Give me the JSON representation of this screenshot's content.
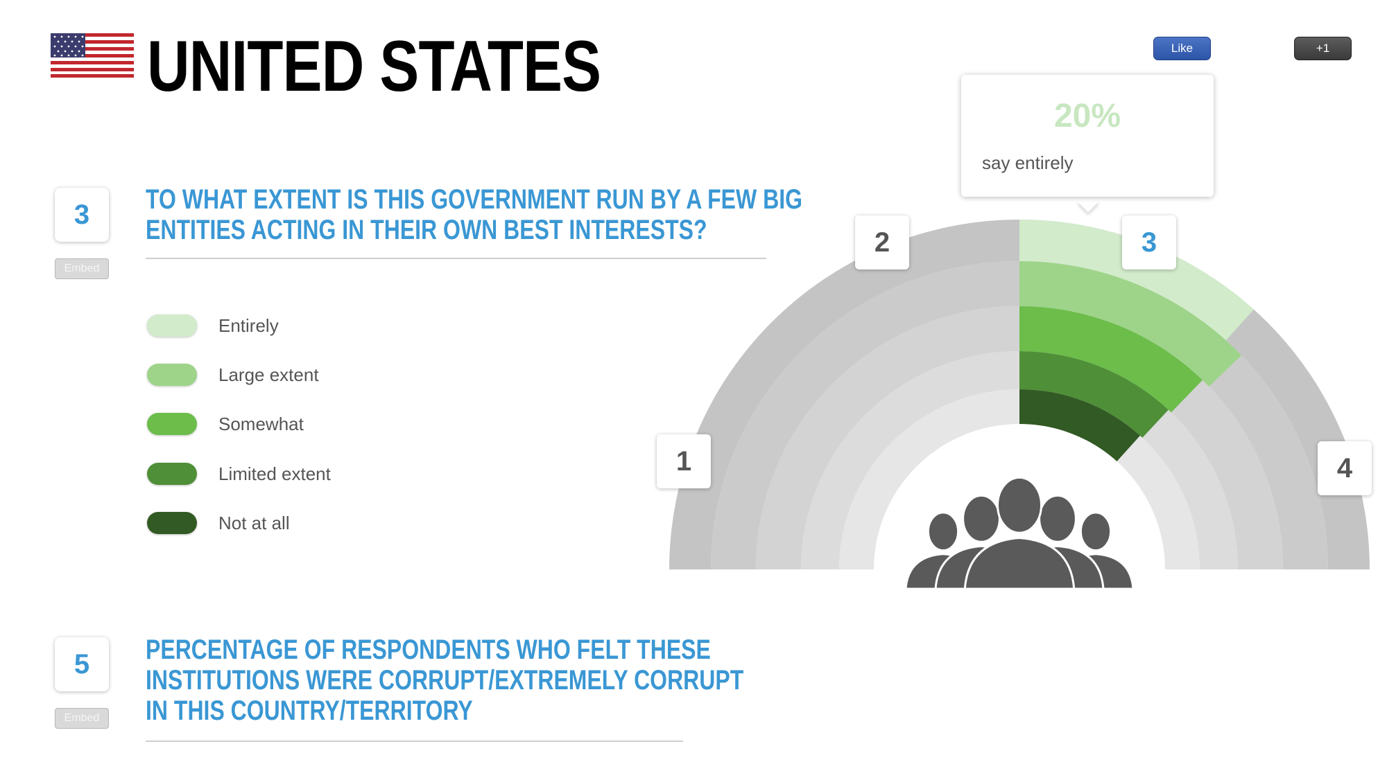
{
  "header": {
    "country": "UNITED STATES",
    "flag_icon": "us-flag-icon"
  },
  "social": {
    "like_label": "Like",
    "plusone_label": "+1"
  },
  "question_3": {
    "number": "3",
    "embed_label": "Embed",
    "lines": [
      "TO WHAT EXTENT IS THIS GOVERNMENT RUN BY A FEW BIG",
      "ENTITIES ACTING IN THEIR OWN BEST INTERESTS?"
    ]
  },
  "legend": [
    {
      "label": "Entirely",
      "color": "#d2ebcb"
    },
    {
      "label": "Large extent",
      "color": "#9ed489"
    },
    {
      "label": "Somewhat",
      "color": "#6cbd4a"
    },
    {
      "label": "Limited extent",
      "color": "#4f8f38"
    },
    {
      "label": "Not at all",
      "color": "#325a24"
    }
  ],
  "tooltip": {
    "percent": "20%",
    "text": "say entirely"
  },
  "segments": [
    {
      "label": "1",
      "active": false
    },
    {
      "label": "2",
      "active": false
    },
    {
      "label": "3",
      "active": true
    },
    {
      "label": "4",
      "active": false
    }
  ],
  "chart_data": {
    "type": "radial-bar",
    "selected_segment": "3",
    "categories": [
      "Entirely",
      "Large extent",
      "Somewhat",
      "Limited extent",
      "Not at all"
    ],
    "highlighted_value_percent": 20,
    "highlighted_category": "Entirely",
    "colors": [
      "#d2ebcb",
      "#9ed489",
      "#6cbd4a",
      "#4f8f38",
      "#325a24"
    ],
    "inactive_colors": [
      "#c4c4c4",
      "#cbcbcb",
      "#d3d3d3",
      "#dcdcdc",
      "#e6e6e6"
    ],
    "center_icon": "people-group-icon"
  },
  "question_5": {
    "number": "5",
    "embed_label": "Embed",
    "lines": [
      "PERCENTAGE OF RESPONDENTS WHO FELT THESE",
      "INSTITUTIONS WERE CORRUPT/EXTREMELY CORRUPT",
      "IN THIS COUNTRY/TERRITORY"
    ]
  }
}
